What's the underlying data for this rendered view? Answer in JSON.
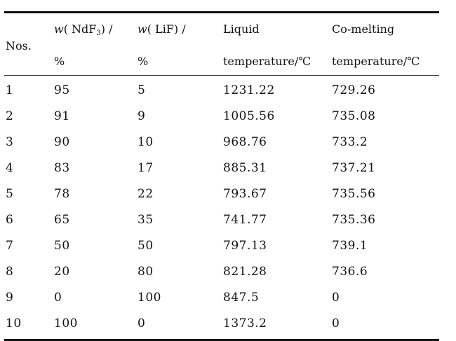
{
  "table": {
    "headers": {
      "nos": "Nos.",
      "ndf3_prefix": "w",
      "ndf3_open": "( NdF",
      "ndf3_sub": "3",
      "ndf3_close": ") /",
      "ndf3_unit": "%",
      "lif_prefix": "w",
      "lif_label": "( LiF) /",
      "lif_unit": "%",
      "liquid_line1": "Liquid",
      "liquid_line2": "temperature/℃",
      "comelt_line1": "Co-melting",
      "comelt_line2": "temperature/℃"
    },
    "rows": [
      {
        "no": "1",
        "ndf3": "95",
        "lif": "5",
        "liquid": "1231.22",
        "comelt": "729.26"
      },
      {
        "no": "2",
        "ndf3": "91",
        "lif": "9",
        "liquid": "1005.56",
        "comelt": "735.08"
      },
      {
        "no": "3",
        "ndf3": "90",
        "lif": "10",
        "liquid": "968.76",
        "comelt": "733.2"
      },
      {
        "no": "4",
        "ndf3": "83",
        "lif": "17",
        "liquid": "885.31",
        "comelt": "737.21"
      },
      {
        "no": "5",
        "ndf3": "78",
        "lif": "22",
        "liquid": "793.67",
        "comelt": "735.56"
      },
      {
        "no": "6",
        "ndf3": "65",
        "lif": "35",
        "liquid": "741.77",
        "comelt": "735.36"
      },
      {
        "no": "7",
        "ndf3": "50",
        "lif": "50",
        "liquid": "797.13",
        "comelt": "739.1"
      },
      {
        "no": "8",
        "ndf3": "20",
        "lif": "80",
        "liquid": "821.28",
        "comelt": "736.6"
      },
      {
        "no": "9",
        "ndf3": "0",
        "lif": "100",
        "liquid": "847.5",
        "comelt": "0"
      },
      {
        "no": "10",
        "ndf3": "100",
        "lif": "0",
        "liquid": "1373.2",
        "comelt": "0"
      }
    ]
  }
}
